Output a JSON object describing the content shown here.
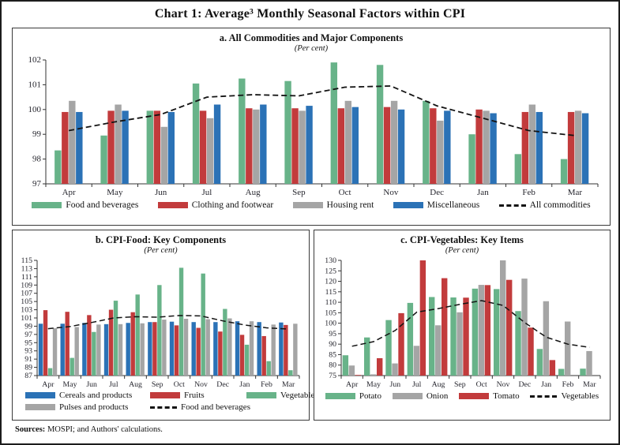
{
  "title": "Chart 1: Average³ Monthly Seasonal Factors within CPI",
  "sources": {
    "label": "Sources:",
    "text": " MOSPI; and Authors' calculations."
  },
  "colors": {
    "food_green": "#68b389",
    "clothing_red": "#c23b3c",
    "housing_gray": "#a5a5a5",
    "misc_blue": "#2b72b6",
    "dashed_line": "#141414",
    "panel_border": "#3a3a3a"
  },
  "chart_data": [
    {
      "id": "a",
      "type": "bar",
      "title": "a. All Commodities and Major Components",
      "subtitle": "(Per cent)",
      "xlabel": "",
      "ylabel": "",
      "ylim": [
        97,
        102
      ],
      "ytick_step": 1,
      "grid": false,
      "legend_position": "bottom",
      "categories": [
        "Apr",
        "May",
        "Jun",
        "Jul",
        "Aug",
        "Sep",
        "Oct",
        "Nov",
        "Dec",
        "Jan",
        "Feb",
        "Mar"
      ],
      "series": [
        {
          "name": "Food and beverages",
          "color": "#68b389",
          "values": [
            98.35,
            98.95,
            99.95,
            101.05,
            101.25,
            101.15,
            101.9,
            101.8,
            100.35,
            99.0,
            98.2,
            98.0
          ]
        },
        {
          "name": "Clothing and footwear",
          "color": "#c23b3c",
          "values": [
            99.9,
            99.95,
            99.95,
            99.95,
            100.05,
            100.05,
            100.05,
            100.1,
            100.05,
            100.0,
            99.9,
            99.9
          ]
        },
        {
          "name": "Housing rent",
          "color": "#a5a5a5",
          "values": [
            100.35,
            100.2,
            99.3,
            99.65,
            100.0,
            99.95,
            100.35,
            100.35,
            99.55,
            99.95,
            100.2,
            99.95
          ]
        },
        {
          "name": "Miscellaneous",
          "color": "#2b72b6",
          "values": [
            99.9,
            99.95,
            99.9,
            100.2,
            100.2,
            100.15,
            100.1,
            100.0,
            99.95,
            99.85,
            99.9,
            99.85
          ]
        }
      ],
      "line_series": {
        "name": "All commodities",
        "color": "#141414",
        "style": "dashed",
        "values": [
          99.15,
          99.5,
          99.8,
          100.5,
          100.6,
          100.55,
          100.9,
          100.95,
          100.15,
          99.65,
          99.15,
          98.95
        ]
      }
    },
    {
      "id": "b",
      "type": "bar",
      "title": "b. CPI-Food: Key Components",
      "subtitle": "(Per cent)",
      "xlabel": "",
      "ylabel": "",
      "ylim": [
        87,
        115
      ],
      "ytick_step": 2,
      "grid": false,
      "legend_position": "bottom",
      "categories": [
        "Apr",
        "May",
        "Jun",
        "Jul",
        "Aug",
        "Sep",
        "Oct",
        "Nov",
        "Dec",
        "Jan",
        "Feb",
        "Mar"
      ],
      "series": [
        {
          "name": "Cereals and products",
          "color": "#2b72b6",
          "values": [
            99.6,
            99.6,
            99.8,
            99.5,
            99.8,
            100.0,
            100.1,
            100.0,
            100.0,
            100.2,
            100.0,
            99.9
          ]
        },
        {
          "name": "Fruits",
          "color": "#c23b3c",
          "values": [
            102.9,
            102.5,
            101.7,
            103.0,
            102.4,
            100.0,
            99.2,
            98.6,
            97.7,
            96.9,
            96.6,
            99.3
          ]
        },
        {
          "name": "Vegetables",
          "color": "#68b389",
          "values": [
            88.8,
            91.3,
            97.6,
            105.2,
            106.7,
            109.0,
            113.2,
            111.8,
            103.2,
            94.5,
            90.5,
            88.3
          ]
        },
        {
          "name": "Pulses and products",
          "color": "#a5a5a5",
          "values": [
            98.5,
            98.8,
            99.4,
            99.5,
            99.7,
            100.6,
            100.8,
            100.7,
            100.9,
            100.2,
            99.4,
            99.6
          ]
        }
      ],
      "line_series": {
        "name": "Food and beverages",
        "color": "#141414",
        "style": "dashed",
        "values": [
          98.4,
          98.9,
          99.9,
          101.0,
          101.3,
          101.2,
          101.6,
          101.5,
          100.3,
          99.3,
          98.6,
          98.3
        ]
      }
    },
    {
      "id": "c",
      "type": "bar",
      "title": "c. CPI-Vegetables: Key Items",
      "subtitle": "(Per cent)",
      "xlabel": "",
      "ylabel": "",
      "ylim": [
        75,
        130
      ],
      "ytick_step": 5,
      "grid": false,
      "legend_position": "bottom",
      "categories": [
        "Apr",
        "May",
        "Jun",
        "Jul",
        "Aug",
        "Sep",
        "Oct",
        "Nov",
        "Dec",
        "Jan",
        "Feb",
        "Mar"
      ],
      "series": [
        {
          "name": "Potato",
          "color": "#68b389",
          "values": [
            84.7,
            93.2,
            101.5,
            109.7,
            112.5,
            112.3,
            116.5,
            116.3,
            105.8,
            87.7,
            78.2,
            78.3
          ]
        },
        {
          "name": "Onion",
          "color": "#a5a5a5",
          "values": [
            79.8,
            75.6,
            80.8,
            89.2,
            99.0,
            105.2,
            118.3,
            130.0,
            121.3,
            110.5,
            100.8,
            86.7
          ]
        },
        {
          "name": "Tomato",
          "color": "#c23b3c",
          "values": [
            75.3,
            83.3,
            104.8,
            130.0,
            121.5,
            112.2,
            118.2,
            120.7,
            97.9,
            82.4,
            75.0,
            75.0
          ]
        }
      ],
      "line_series": {
        "name": "Vegetables",
        "color": "#141414",
        "style": "dashed",
        "values": [
          89.0,
          91.2,
          96.5,
          105.3,
          107.0,
          109.0,
          110.8,
          108.5,
          100.3,
          93.3,
          90.0,
          88.5
        ]
      }
    }
  ]
}
